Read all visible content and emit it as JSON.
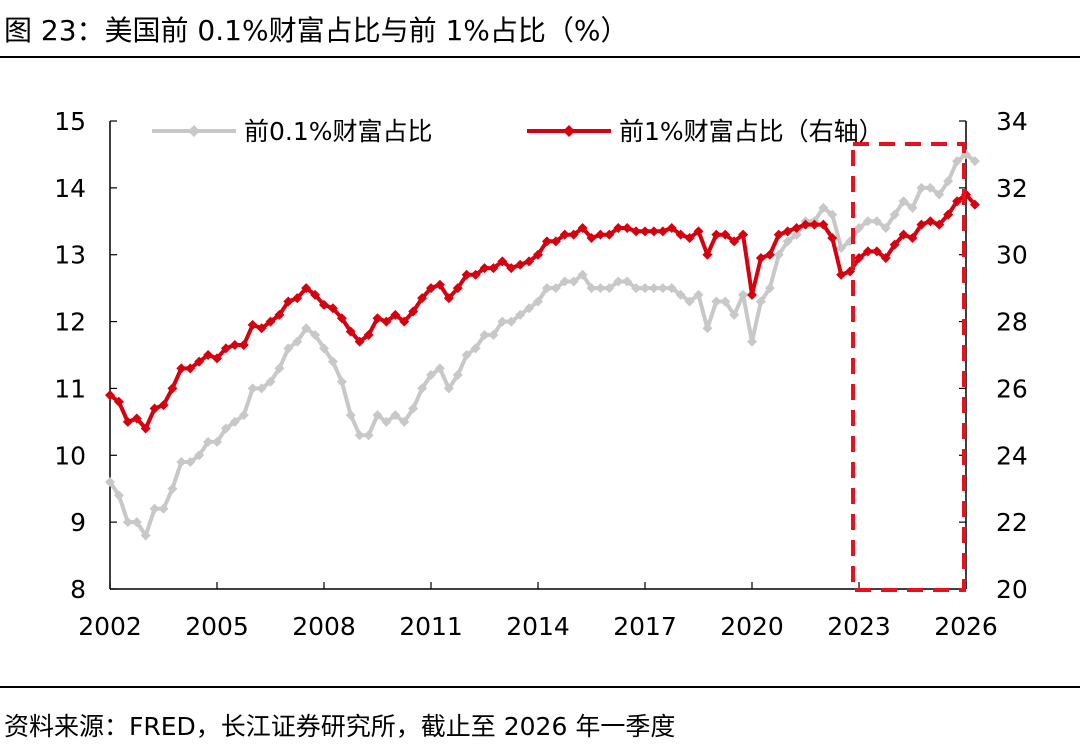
{
  "figure": {
    "title": "图 23：美国前 0.1%财富占比与前 1%占比（%）",
    "source": "资料来源：FRED，长江证券研究所，截止至 2026 年一季度"
  },
  "colors": {
    "series_top01": "#c8c8c8",
    "series_top1": "#d7000f",
    "highlight": "#e8101c",
    "axis": "#000000"
  },
  "chart_data": {
    "type": "line",
    "x_tick_labels": [
      "2002",
      "2005",
      "2008",
      "2011",
      "2014",
      "2017",
      "2020",
      "2023",
      "2026"
    ],
    "x_range": [
      2002.0,
      2026.0
    ],
    "y_left": {
      "range": [
        8,
        15
      ],
      "ticks": [
        "8",
        "9",
        "10",
        "11",
        "12",
        "13",
        "14",
        "15"
      ]
    },
    "y_right": {
      "range": [
        20,
        34
      ],
      "ticks": [
        "20",
        "22",
        "24",
        "26",
        "28",
        "30",
        "32",
        "34"
      ]
    },
    "legend_position": "top",
    "grid": false,
    "x_start": 2002.0,
    "x_step": 0.25,
    "series": [
      {
        "name": "前0.1%财富占比",
        "axis": "left",
        "values": [
          9.6,
          9.4,
          9.0,
          9.0,
          8.8,
          9.2,
          9.2,
          9.5,
          9.9,
          9.9,
          10.0,
          10.2,
          10.2,
          10.4,
          10.5,
          10.6,
          11.0,
          11.0,
          11.1,
          11.3,
          11.6,
          11.7,
          11.9,
          11.8,
          11.6,
          11.4,
          11.1,
          10.6,
          10.3,
          10.3,
          10.6,
          10.5,
          10.6,
          10.5,
          10.7,
          11.0,
          11.2,
          11.3,
          11.0,
          11.2,
          11.5,
          11.6,
          11.8,
          11.8,
          12.0,
          12.0,
          12.1,
          12.2,
          12.3,
          12.5,
          12.5,
          12.6,
          12.6,
          12.7,
          12.5,
          12.5,
          12.5,
          12.6,
          12.6,
          12.5,
          12.5,
          12.5,
          12.5,
          12.5,
          12.4,
          12.3,
          12.4,
          11.9,
          12.3,
          12.3,
          12.1,
          12.4,
          11.7,
          12.3,
          12.5,
          13.0,
          13.2,
          13.3,
          13.5,
          13.5,
          13.7,
          13.6,
          13.1,
          13.2,
          13.4,
          13.5,
          13.5,
          13.4,
          13.6,
          13.8,
          13.7,
          14.0,
          14.0,
          13.9,
          14.1,
          14.4,
          14.5,
          14.4
        ]
      },
      {
        "name": "前1%财富占比（右轴）",
        "axis": "right",
        "values": [
          25.8,
          25.6,
          25.0,
          25.1,
          24.8,
          25.4,
          25.5,
          26.0,
          26.6,
          26.6,
          26.8,
          27.0,
          26.9,
          27.2,
          27.3,
          27.3,
          27.9,
          27.8,
          28.0,
          28.2,
          28.6,
          28.7,
          29.0,
          28.8,
          28.5,
          28.4,
          28.1,
          27.7,
          27.4,
          27.6,
          28.1,
          28.0,
          28.2,
          28.0,
          28.3,
          28.7,
          29.0,
          29.1,
          28.7,
          29.0,
          29.4,
          29.4,
          29.6,
          29.6,
          29.8,
          29.6,
          29.7,
          29.8,
          30.0,
          30.4,
          30.4,
          30.6,
          30.6,
          30.8,
          30.5,
          30.6,
          30.6,
          30.8,
          30.8,
          30.7,
          30.7,
          30.7,
          30.7,
          30.8,
          30.6,
          30.5,
          30.7,
          30.0,
          30.6,
          30.6,
          30.4,
          30.6,
          28.8,
          29.9,
          30.0,
          30.6,
          30.7,
          30.8,
          30.9,
          30.9,
          30.9,
          30.5,
          29.4,
          29.5,
          29.9,
          30.1,
          30.1,
          29.9,
          30.3,
          30.6,
          30.5,
          30.9,
          31.0,
          30.9,
          31.2,
          31.6,
          31.8,
          31.5
        ]
      }
    ],
    "highlight_region": {
      "x_from": 2023.0,
      "x_to": 2026.0,
      "style": "red dashed box"
    }
  }
}
